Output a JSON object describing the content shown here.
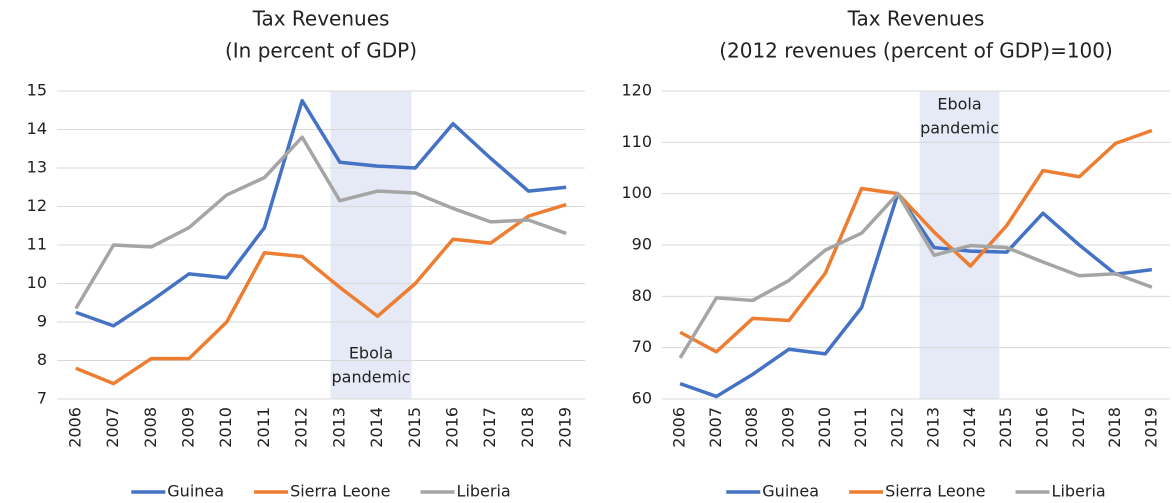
{
  "chart_data": [
    {
      "type": "line",
      "title": [
        "Tax Revenues",
        "(In percent of GDP)"
      ],
      "x": [
        2006,
        2007,
        2008,
        2009,
        2010,
        2011,
        2012,
        2013,
        2014,
        2015,
        2016,
        2017,
        2018,
        2019
      ],
      "xlim": [
        2005.5,
        2019.5
      ],
      "xticks": [
        2006,
        2007,
        2008,
        2009,
        2010,
        2011,
        2012,
        2013,
        2014,
        2015,
        2016,
        2017,
        2018,
        2019
      ],
      "ylim": [
        7,
        15
      ],
      "yticks": [
        7,
        8,
        9,
        10,
        11,
        12,
        13,
        14,
        15
      ],
      "grid": true,
      "shade": {
        "from": 2012.75,
        "to": 2014.9,
        "label": [
          "Ebola",
          "pandemic"
        ],
        "label_position": "bottom",
        "color": "#e6eaf6"
      },
      "series": [
        {
          "name": "Guinea",
          "color": "#4472c4",
          "values": [
            9.25,
            8.9,
            9.55,
            10.25,
            10.15,
            11.45,
            14.75,
            13.15,
            13.05,
            13.0,
            14.15,
            13.25,
            12.4,
            12.5
          ]
        },
        {
          "name": "Sierra Leone",
          "color": "#ed7d31",
          "values": [
            7.8,
            7.4,
            8.05,
            8.05,
            9.0,
            10.8,
            10.7,
            9.9,
            9.15,
            10.0,
            11.15,
            11.05,
            11.75,
            12.05
          ]
        },
        {
          "name": "Liberia",
          "color": "#a5a5a5",
          "values": [
            9.35,
            11.0,
            10.95,
            11.45,
            12.3,
            12.75,
            13.8,
            12.15,
            12.4,
            12.35,
            11.95,
            11.6,
            11.65,
            11.3
          ]
        }
      ],
      "legend": "bottom"
    },
    {
      "type": "line",
      "title": [
        "Tax Revenues",
        "(2012 revenues (percent of GDP)=100)"
      ],
      "x": [
        2006,
        2007,
        2008,
        2009,
        2010,
        2011,
        2012,
        2013,
        2014,
        2015,
        2016,
        2017,
        2018,
        2019
      ],
      "xlim": [
        2005.5,
        2019.5
      ],
      "xticks": [
        2006,
        2007,
        2008,
        2009,
        2010,
        2011,
        2012,
        2013,
        2014,
        2015,
        2016,
        2017,
        2018,
        2019
      ],
      "ylim": [
        60,
        120
      ],
      "yticks": [
        60,
        70,
        80,
        90,
        100,
        110,
        120
      ],
      "grid": true,
      "shade": {
        "from": 2012.6,
        "to": 2014.8,
        "label": [
          "Ebola",
          "pandemic"
        ],
        "label_position": "top",
        "color": "#e6eaf6"
      },
      "series": [
        {
          "name": "Guinea",
          "color": "#4472c4",
          "values": [
            63,
            60.5,
            64.8,
            69.7,
            68.8,
            77.8,
            100,
            89.5,
            88.8,
            88.6,
            96.2,
            90,
            84.3,
            85.2
          ]
        },
        {
          "name": "Sierra Leone",
          "color": "#ed7d31",
          "values": [
            73,
            69.2,
            75.7,
            75.3,
            84.5,
            101,
            100,
            92.5,
            85.9,
            93.8,
            104.5,
            103.3,
            109.8,
            112.3
          ]
        },
        {
          "name": "Liberia",
          "color": "#a5a5a5",
          "values": [
            68,
            79.7,
            79.2,
            83.1,
            89,
            92.3,
            100,
            88,
            89.9,
            89.5,
            86.7,
            84,
            84.4,
            81.8
          ]
        }
      ],
      "legend": "bottom"
    }
  ]
}
